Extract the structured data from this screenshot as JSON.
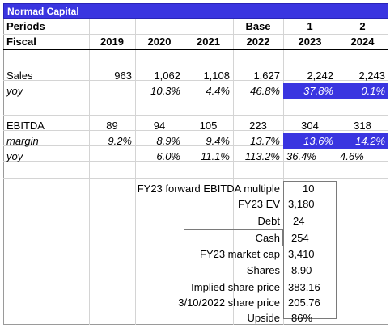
{
  "title": "Normad Capital",
  "colors": {
    "accent": "#3a35e0"
  },
  "header": {
    "periods_label": "Periods",
    "fiscal_label": "Fiscal",
    "period_labels": [
      "",
      "",
      "",
      "Base",
      "1",
      "2"
    ],
    "years": [
      "2019",
      "2020",
      "2021",
      "2022",
      "2023",
      "2024"
    ]
  },
  "rows": {
    "sales": {
      "label": "Sales",
      "values": [
        "963",
        "1,062",
        "1,108",
        "1,627",
        "2,242",
        "2,243"
      ]
    },
    "sales_yoy": {
      "label": "yoy",
      "values": [
        "",
        "10.3%",
        "4.4%",
        "46.8%",
        "37.8%",
        "0.1%"
      ]
    },
    "ebitda": {
      "label": "EBITDA",
      "values": [
        "89",
        "94",
        "105",
        "223",
        "304",
        "318"
      ]
    },
    "margin": {
      "label": "margin",
      "values": [
        "9.2%",
        "8.9%",
        "9.4%",
        "13.7%",
        "13.6%",
        "14.2%"
      ]
    },
    "ebitda_yoy": {
      "label": "yoy",
      "values": [
        "",
        "6.0%",
        "11.1%",
        "113.2%",
        "36.4%",
        "4.6%"
      ]
    }
  },
  "valuation": [
    {
      "label": "FY23 forward EBITDA multiple",
      "value": "10"
    },
    {
      "label": "FY23 EV",
      "value": "3,180"
    },
    {
      "label": "Debt",
      "value": "24"
    },
    {
      "label": "Cash",
      "value": "254"
    },
    {
      "label": "FY23 market cap",
      "value": "3,410"
    },
    {
      "label": "Shares",
      "value": "8.90"
    },
    {
      "label": "Implied share price",
      "value": "383.16"
    },
    {
      "label": "3/10/2022 share price",
      "value": "205.76"
    },
    {
      "label": "Upside",
      "value": "86%"
    }
  ]
}
